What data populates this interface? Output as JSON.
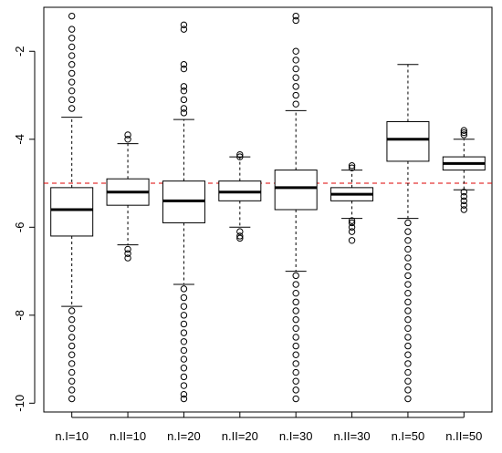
{
  "chart_data": {
    "type": "boxplot",
    "title": "",
    "xlabel": "",
    "ylabel": "",
    "ylim": [
      -10.2,
      -1.0
    ],
    "yticks": [
      -10,
      -8,
      -6,
      -4,
      -2
    ],
    "ytick_labels": [
      "-10",
      "-8",
      "-6",
      "-4",
      "-2"
    ],
    "reference_line": {
      "y": -5.0,
      "color": "#dd0000",
      "style": "dashed"
    },
    "categories": [
      "n.I=10",
      "n.II=10",
      "n.I=20",
      "n.II=20",
      "n.I=30",
      "n.II=30",
      "n.I=50",
      "n.II=50"
    ],
    "boxes": [
      {
        "label": "n.I=10",
        "q1": -6.2,
        "median": -5.6,
        "q3": -5.1,
        "whisker_low": -7.8,
        "whisker_high": -3.5,
        "outliers": [
          -1.2,
          -1.5,
          -1.7,
          -1.9,
          -2.1,
          -2.3,
          -2.5,
          -2.7,
          -2.9,
          -3.1,
          -3.3,
          -7.9,
          -8.1,
          -8.3,
          -8.5,
          -8.7,
          -8.9,
          -9.1,
          -9.3,
          -9.5,
          -9.7,
          -9.9
        ]
      },
      {
        "label": "n.II=10",
        "q1": -5.5,
        "median": -5.2,
        "q3": -4.9,
        "whisker_low": -6.4,
        "whisker_high": -4.1,
        "outliers": [
          -3.9,
          -4.0,
          -6.5,
          -6.6,
          -6.7
        ]
      },
      {
        "label": "n.I=20",
        "q1": -5.9,
        "median": -5.4,
        "q3": -4.95,
        "whisker_low": -7.3,
        "whisker_high": -3.55,
        "outliers": [
          -1.4,
          -1.5,
          -2.3,
          -2.4,
          -2.8,
          -2.9,
          -3.1,
          -3.3,
          -3.4,
          -7.4,
          -7.6,
          -7.8,
          -8.0,
          -8.2,
          -8.4,
          -8.6,
          -8.8,
          -9.0,
          -9.2,
          -9.4,
          -9.6,
          -9.8,
          -9.9
        ]
      },
      {
        "label": "n.II=20",
        "q1": -5.4,
        "median": -5.2,
        "q3": -4.95,
        "whisker_low": -6.0,
        "whisker_high": -4.4,
        "outliers": [
          -4.35,
          -4.4,
          -6.1,
          -6.2,
          -6.25
        ]
      },
      {
        "label": "n.I=30",
        "q1": -5.6,
        "median": -5.1,
        "q3": -4.7,
        "whisker_low": -7.0,
        "whisker_high": -3.35,
        "outliers": [
          -1.2,
          -1.3,
          -2.0,
          -2.2,
          -2.4,
          -2.6,
          -2.8,
          -3.0,
          -3.2,
          -7.1,
          -7.3,
          -7.5,
          -7.7,
          -7.9,
          -8.1,
          -8.3,
          -8.5,
          -8.7,
          -8.9,
          -9.1,
          -9.3,
          -9.5,
          -9.7,
          -9.9
        ]
      },
      {
        "label": "n.II=30",
        "q1": -5.4,
        "median": -5.25,
        "q3": -5.1,
        "whisker_low": -5.8,
        "whisker_high": -4.7,
        "outliers": [
          -4.6,
          -4.65,
          -5.85,
          -5.9,
          -6.0,
          -6.1,
          -6.3
        ]
      },
      {
        "label": "n.I=50",
        "q1": -4.5,
        "median": -4.0,
        "q3": -3.6,
        "whisker_low": -5.8,
        "whisker_high": -2.3,
        "outliers": [
          -5.9,
          -6.1,
          -6.3,
          -6.5,
          -6.7,
          -6.9,
          -7.1,
          -7.3,
          -7.5,
          -7.7,
          -7.9,
          -8.1,
          -8.3,
          -8.5,
          -8.7,
          -8.9,
          -9.1,
          -9.3,
          -9.5,
          -9.7,
          -9.9
        ]
      },
      {
        "label": "n.II=50",
        "q1": -4.7,
        "median": -4.55,
        "q3": -4.4,
        "whisker_low": -5.15,
        "whisker_high": -4.0,
        "outliers": [
          -3.8,
          -3.85,
          -3.9,
          -5.2,
          -5.3,
          -5.4,
          -5.5,
          -5.6
        ]
      }
    ],
    "colors": {
      "box_fill": "#ffffff",
      "stroke": "#000000",
      "reference": "#dd0000"
    }
  }
}
